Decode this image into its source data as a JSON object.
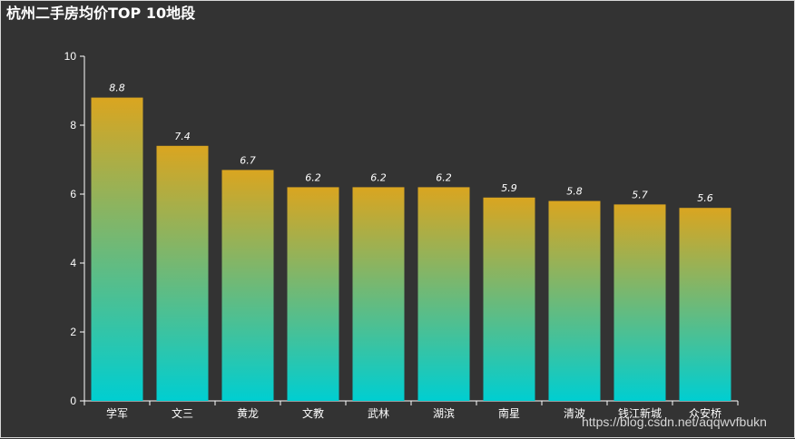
{
  "title": "杭州二手房均价TOP 10地段",
  "watermark": "https://blog.csdn.net/aqqwvfbukn",
  "colors": {
    "background": "#333333",
    "bar_top": "#daa520",
    "bar_bottom": "#00ced1",
    "axis": "#ffffff"
  },
  "chart_data": {
    "type": "bar",
    "title": "杭州二手房均价TOP 10地段",
    "categories": [
      "学军",
      "文三",
      "黄龙",
      "文教",
      "武林",
      "湖滨",
      "南星",
      "清波",
      "钱江新城",
      "众安桥"
    ],
    "values": [
      8.8,
      7.4,
      6.7,
      6.2,
      6.2,
      6.2,
      5.9,
      5.8,
      5.7,
      5.6
    ],
    "ylim": [
      0,
      10
    ],
    "yticks": [
      0,
      2,
      4,
      6,
      8,
      10
    ],
    "grid": false,
    "data_labels": true
  }
}
